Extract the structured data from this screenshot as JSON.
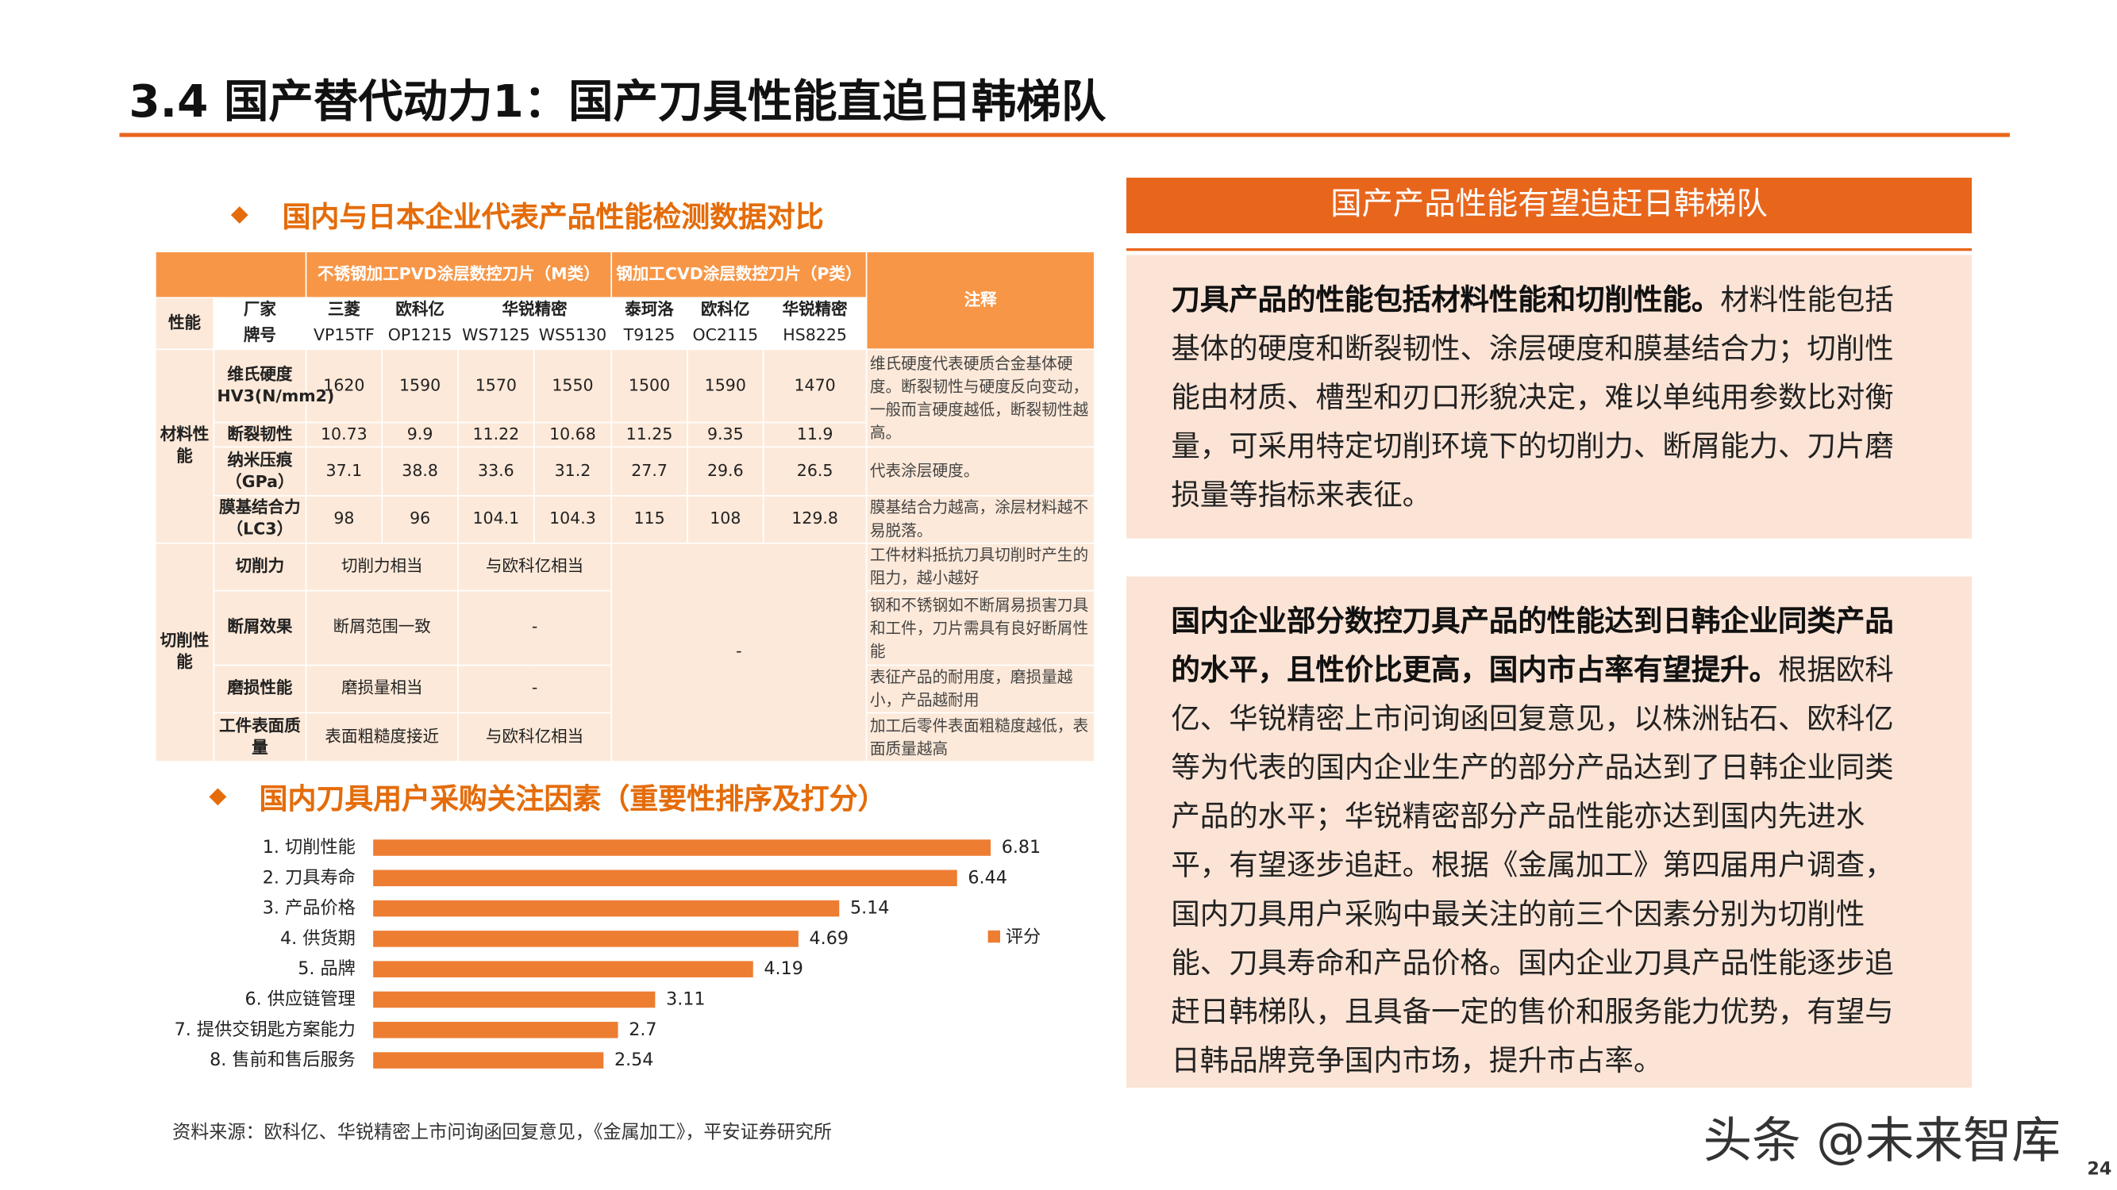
{
  "header": {
    "title": "3.4 国产替代动力1：国产刀具性能直追日韩梯队"
  },
  "table_section": {
    "title": "国内与日本企业代表产品性能检测数据对比",
    "table": {
      "group_headers": [
        "不锈钢加工PVD涂层数控刀片（M类）",
        "钢加工CVD涂层数控刀片（P类）"
      ],
      "note_header": "注释",
      "performance_label": "性能",
      "maker_label": "厂家",
      "makers": [
        "三菱",
        "欧科亿",
        "华锐精密",
        "泰珂洛",
        "欧科亿",
        "华锐精密"
      ],
      "model_label": "牌号",
      "models": [
        "VP15TF",
        "OP1215",
        "WS7125",
        "WS5130",
        "T9125",
        "OC2115",
        "HS8225"
      ],
      "sections": [
        {
          "label": "材料性能",
          "rows": [
            {
              "label": "维氏硬度HV3(N/mm2)",
              "cells": [
                1620,
                1590,
                1570,
                1550,
                1500,
                1590,
                1470
              ],
              "note": "维氏硬度代表硬质合金基体硬度。断裂韧性与硬度反向变动，一般而言硬度越低，断裂韧性越高。"
            },
            {
              "label": "断裂韧性",
              "cells": [
                10.73,
                9.9,
                11.22,
                10.68,
                11.25,
                9.35,
                11.9
              ]
            },
            {
              "label": "纳米压痕（GPa）",
              "cells": [
                37.1,
                38.8,
                33.6,
                31.2,
                27.7,
                29.6,
                26.5
              ],
              "note": "代表涂层硬度。"
            },
            {
              "label": "膜基结合力（LC3）",
              "cells": [
                98,
                96,
                104.1,
                104.3,
                115,
                108,
                129.8
              ],
              "note": "膜基结合力越高，涂层材料越不易脱落。"
            }
          ]
        },
        {
          "label": "切削性能",
          "p_class": "-",
          "rows": [
            {
              "label": "切削力",
              "cells": [
                "切削力相当",
                "与欧科亿相当"
              ],
              "note": "工件材料抵抗刀具切削时产生的阻力，越小越好"
            },
            {
              "label": "断屑效果",
              "cells": [
                "断屑范围一致",
                "-"
              ],
              "note": "钢和不锈钢如不断屑易损害刀具和工件，刀片需具有良好断屑性能"
            },
            {
              "label": "磨损性能",
              "cells": [
                "磨损量相当",
                "-"
              ],
              "note": "表征产品的耐用度，磨损量越小，产品越耐用"
            },
            {
              "label": "工件表面质量",
              "cells": [
                "表面粗糙度接近",
                "与欧科亿相当"
              ],
              "note": "加工后零件表面粗糙度越低，表面质量越高"
            }
          ]
        }
      ]
    }
  },
  "chart_data": {
    "type": "bar",
    "orientation": "horizontal",
    "title": "国内刀具用户采购关注因素（重要性排序及打分）",
    "categories": [
      "1. 切削性能",
      "2. 刀具寿命",
      "3. 产品价格",
      "4. 供货期",
      "5. 品牌",
      "6. 供应链管理",
      "7. 提供交钥匙方案能力",
      "8. 售前和售后服务"
    ],
    "series": [
      {
        "name": "评分",
        "color": "#ed7d31",
        "values": [
          6.81,
          6.44,
          5.14,
          4.69,
          4.19,
          3.11,
          2.7,
          2.54
        ]
      }
    ],
    "legend": "right"
  },
  "panel": {
    "title": "国产产品性能有望追赶日韩梯队",
    "paragraphs": [
      {
        "bold": "刀具产品的性能包括材料性能和切削性能。",
        "text": "材料性能包括基体的硬度和断裂韧性、涂层硬度和膜基结合力；切削性能由材质、槽型和刃口形貌决定，难以单纯用参数比对衡量，可采用特定切削环境下的切削力、断屑能力、刀片磨损量等指标来表征。"
      },
      {
        "bold": "国内企业部分数控刀具产品的性能达到日韩企业同类产品的水平，且性价比更高，国内市占率有望提升。",
        "text": "根据欧科亿、华锐精密上市问询函回复意见，以株洲钻石、欧科亿等为代表的国内企业生产的部分产品达到了日韩企业同类产品的水平；华锐精密部分产品性能亦达到国内先进水平，有望逐步追赶。根据《金属加工》第四届用户调查，国内刀具用户采购中最关注的前三个因素分别为切削性能、刀具寿命和产品价格。国内企业刀具产品性能逐步追赶日韩梯队，且具备一定的售价和服务能力优势，有望与日韩品牌竞争国内市场，提升市占率。"
      }
    ]
  },
  "source": "资料来源：欧科亿、华锐精密上市问询函回复意见，《金属加工》，平安证券研究所",
  "watermark": "头条 @未来智库",
  "page_number": 24
}
